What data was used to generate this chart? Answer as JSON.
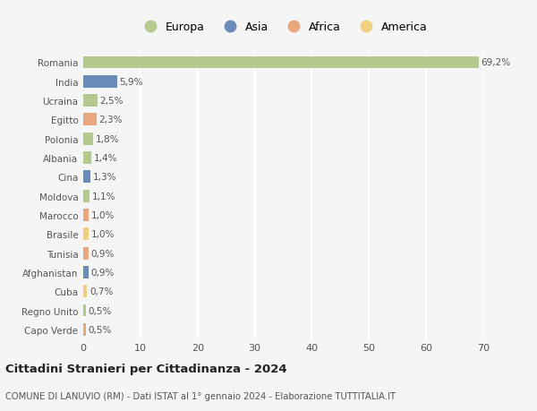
{
  "countries": [
    "Romania",
    "India",
    "Ucraina",
    "Egitto",
    "Polonia",
    "Albania",
    "Cina",
    "Moldova",
    "Marocco",
    "Brasile",
    "Tunisia",
    "Afghanistan",
    "Cuba",
    "Regno Unito",
    "Capo Verde"
  ],
  "values": [
    69.2,
    5.9,
    2.5,
    2.3,
    1.8,
    1.4,
    1.3,
    1.1,
    1.0,
    1.0,
    0.9,
    0.9,
    0.7,
    0.5,
    0.5
  ],
  "labels": [
    "69,2%",
    "5,9%",
    "2,5%",
    "2,3%",
    "1,8%",
    "1,4%",
    "1,3%",
    "1,1%",
    "1,0%",
    "1,0%",
    "0,9%",
    "0,9%",
    "0,7%",
    "0,5%",
    "0,5%"
  ],
  "continents": [
    "Europa",
    "Asia",
    "Europa",
    "Africa",
    "Europa",
    "Europa",
    "Asia",
    "Europa",
    "Africa",
    "America",
    "Africa",
    "Asia",
    "America",
    "Europa",
    "Africa"
  ],
  "continent_colors": {
    "Europa": "#b5c98e",
    "Asia": "#6b8cba",
    "Africa": "#e8a87c",
    "America": "#f0d080"
  },
  "legend_order": [
    "Europa",
    "Asia",
    "Africa",
    "America"
  ],
  "title": "Cittadini Stranieri per Cittadinanza - 2024",
  "subtitle": "COMUNE DI LANUVIO (RM) - Dati ISTAT al 1° gennaio 2024 - Elaborazione TUTTITALIA.IT",
  "xlim": [
    0,
    70
  ],
  "xticks": [
    0,
    10,
    20,
    30,
    40,
    50,
    60,
    70
  ],
  "bg_color": "#f5f5f5",
  "grid_color": "#ffffff",
  "bar_height": 0.65
}
